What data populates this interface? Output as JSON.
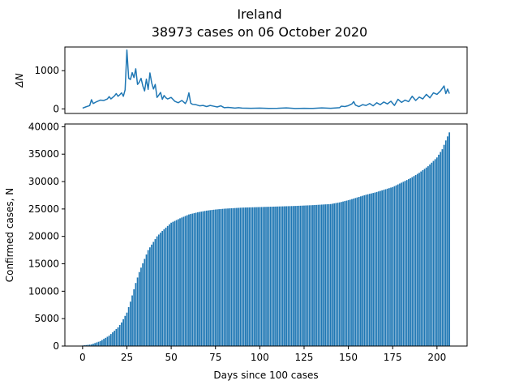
{
  "chart_data": {
    "title": "Ireland",
    "subtitle": "38973 cases on 06 October 2020",
    "panels": [
      {
        "type": "line",
        "ylabel": "ΔN",
        "ylim": [
          -120,
          1620
        ],
        "yticks": [
          0,
          1000
        ],
        "ytick_labels": [
          "0",
          "1000"
        ],
        "xticks_visible": false,
        "color": "#1f77b4",
        "series": [
          {
            "points": [
              [
                0,
                20
              ],
              [
                2,
                55
              ],
              [
                4,
                85
              ],
              [
                5,
                240
              ],
              [
                6,
                140
              ],
              [
                8,
                190
              ],
              [
                10,
                230
              ],
              [
                12,
                220
              ],
              [
                14,
                260
              ],
              [
                15,
                320
              ],
              [
                16,
                260
              ],
              [
                18,
                340
              ],
              [
                19,
                400
              ],
              [
                20,
                330
              ],
              [
                21,
                370
              ],
              [
                22,
                420
              ],
              [
                23,
                330
              ],
              [
                24,
                500
              ],
              [
                25,
                1540
              ],
              [
                26,
                800
              ],
              [
                27,
                770
              ],
              [
                28,
                950
              ],
              [
                29,
                820
              ],
              [
                30,
                1050
              ],
              [
                31,
                640
              ],
              [
                32,
                700
              ],
              [
                33,
                800
              ],
              [
                34,
                600
              ],
              [
                35,
                470
              ],
              [
                36,
                780
              ],
              [
                37,
                510
              ],
              [
                38,
                940
              ],
              [
                39,
                680
              ],
              [
                40,
                520
              ],
              [
                41,
                640
              ],
              [
                42,
                300
              ],
              [
                43,
                360
              ],
              [
                44,
                430
              ],
              [
                45,
                250
              ],
              [
                46,
                350
              ],
              [
                47,
                290
              ],
              [
                48,
                260
              ],
              [
                50,
                300
              ],
              [
                52,
                200
              ],
              [
                54,
                160
              ],
              [
                56,
                220
              ],
              [
                58,
                140
              ],
              [
                59,
                230
              ],
              [
                60,
                420
              ],
              [
                61,
                150
              ],
              [
                62,
                120
              ],
              [
                64,
                110
              ],
              [
                66,
                80
              ],
              [
                68,
                90
              ],
              [
                70,
                60
              ],
              [
                72,
                90
              ],
              [
                74,
                70
              ],
              [
                76,
                50
              ],
              [
                78,
                80
              ],
              [
                80,
                30
              ],
              [
                82,
                40
              ],
              [
                84,
                30
              ],
              [
                86,
                20
              ],
              [
                88,
                30
              ],
              [
                90,
                20
              ],
              [
                95,
                15
              ],
              [
                100,
                20
              ],
              [
                105,
                12
              ],
              [
                110,
                15
              ],
              [
                115,
                25
              ],
              [
                120,
                10
              ],
              [
                125,
                15
              ],
              [
                130,
                12
              ],
              [
                135,
                25
              ],
              [
                140,
                15
              ],
              [
                145,
                30
              ],
              [
                146,
                70
              ],
              [
                148,
                60
              ],
              [
                150,
                85
              ],
              [
                152,
                130
              ],
              [
                153,
                190
              ],
              [
                154,
                100
              ],
              [
                156,
                60
              ],
              [
                158,
                110
              ],
              [
                160,
                90
              ],
              [
                162,
                140
              ],
              [
                164,
                80
              ],
              [
                166,
                160
              ],
              [
                168,
                110
              ],
              [
                170,
                180
              ],
              [
                172,
                130
              ],
              [
                174,
                200
              ],
              [
                176,
                90
              ],
              [
                178,
                250
              ],
              [
                180,
                170
              ],
              [
                182,
                230
              ],
              [
                184,
                190
              ],
              [
                186,
                330
              ],
              [
                188,
                220
              ],
              [
                190,
                310
              ],
              [
                192,
                260
              ],
              [
                194,
                380
              ],
              [
                196,
                290
              ],
              [
                198,
                420
              ],
              [
                200,
                380
              ],
              [
                202,
                470
              ],
              [
                204,
                600
              ],
              [
                205,
                400
              ],
              [
                206,
                520
              ],
              [
                207,
                400
              ]
            ]
          }
        ]
      },
      {
        "type": "bar",
        "xlabel": "Days since 100 cases",
        "ylabel": "Confirmed cases, N",
        "xlim": [
          -10,
          217
        ],
        "ylim": [
          0,
          40500
        ],
        "xticks": [
          0,
          25,
          50,
          75,
          100,
          125,
          150,
          175,
          200
        ],
        "xtick_labels": [
          "0",
          "25",
          "50",
          "75",
          "100",
          "125",
          "150",
          "175",
          "200"
        ],
        "yticks": [
          0,
          5000,
          10000,
          15000,
          20000,
          25000,
          30000,
          35000,
          40000
        ],
        "ytick_labels": [
          "0",
          "5000",
          "10000",
          "15000",
          "20000",
          "25000",
          "30000",
          "35000",
          "40000"
        ],
        "color": "#1f77b4",
        "x_first": 0,
        "x_last": 207,
        "anchors": [
          [
            0,
            100
          ],
          [
            5,
            300
          ],
          [
            10,
            900
          ],
          [
            15,
            1900
          ],
          [
            20,
            3400
          ],
          [
            22,
            4300
          ],
          [
            25,
            6100
          ],
          [
            27,
            8100
          ],
          [
            30,
            11500
          ],
          [
            32,
            13500
          ],
          [
            35,
            15900
          ],
          [
            37,
            17500
          ],
          [
            40,
            19000
          ],
          [
            42,
            20000
          ],
          [
            45,
            21000
          ],
          [
            50,
            22500
          ],
          [
            55,
            23300
          ],
          [
            60,
            24000
          ],
          [
            65,
            24400
          ],
          [
            70,
            24700
          ],
          [
            75,
            24900
          ],
          [
            80,
            25050
          ],
          [
            85,
            25150
          ],
          [
            90,
            25250
          ],
          [
            100,
            25350
          ],
          [
            110,
            25450
          ],
          [
            120,
            25550
          ],
          [
            130,
            25700
          ],
          [
            140,
            25900
          ],
          [
            145,
            26200
          ],
          [
            150,
            26600
          ],
          [
            155,
            27100
          ],
          [
            160,
            27600
          ],
          [
            165,
            28000
          ],
          [
            170,
            28500
          ],
          [
            175,
            29000
          ],
          [
            180,
            29800
          ],
          [
            185,
            30600
          ],
          [
            190,
            31600
          ],
          [
            195,
            32800
          ],
          [
            200,
            34400
          ],
          [
            203,
            35900
          ],
          [
            205,
            37500
          ],
          [
            207,
            38973
          ]
        ]
      }
    ]
  }
}
